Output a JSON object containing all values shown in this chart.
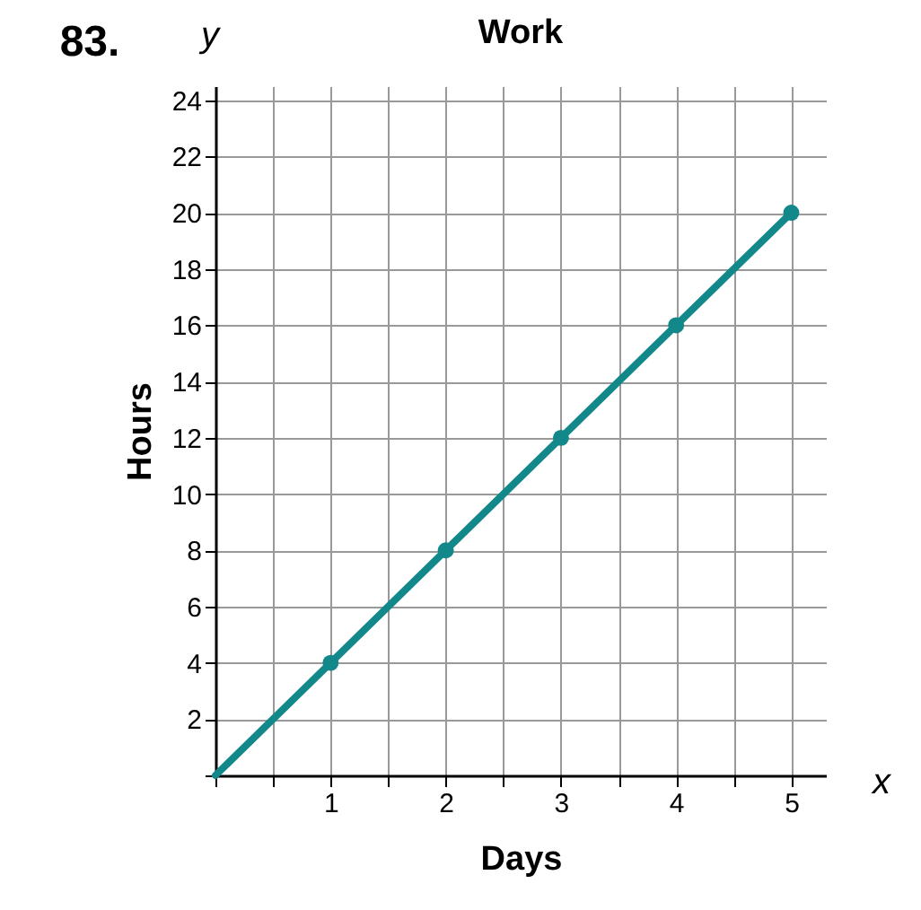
{
  "chart_data": {
    "type": "line",
    "title": "Work",
    "xlabel": "Days",
    "ylabel": "Hours",
    "annotations": [
      "83.",
      "y",
      "x"
    ],
    "series": [
      {
        "color": "#12888a",
        "marker": "none",
        "x": [
          0,
          1,
          2,
          3,
          4,
          5
        ],
        "values": [
          0,
          4,
          8,
          12,
          16,
          20
        ]
      },
      {
        "type": "scatter",
        "color": "#12888a",
        "marker": "circle",
        "x": [
          1,
          2,
          3,
          4,
          5
        ],
        "values": [
          4,
          8,
          12,
          16,
          20
        ]
      }
    ],
    "xlim": [
      0,
      5.3
    ],
    "ylim": [
      0,
      24.5
    ],
    "xticks": [
      {
        "value": 0,
        "label": null
      },
      {
        "value": 0.5,
        "label": null
      },
      1,
      {
        "value": 1.5,
        "label": null
      },
      2,
      {
        "value": 2.5,
        "label": null
      },
      3,
      {
        "value": 3.5,
        "label": null
      },
      4,
      {
        "value": 4.5,
        "label": null
      },
      5
    ],
    "yticks": [
      {
        "value": 0,
        "label": null
      },
      2,
      4,
      6,
      8,
      10,
      12,
      14,
      16,
      18,
      20,
      22,
      24
    ],
    "grid": true
  }
}
